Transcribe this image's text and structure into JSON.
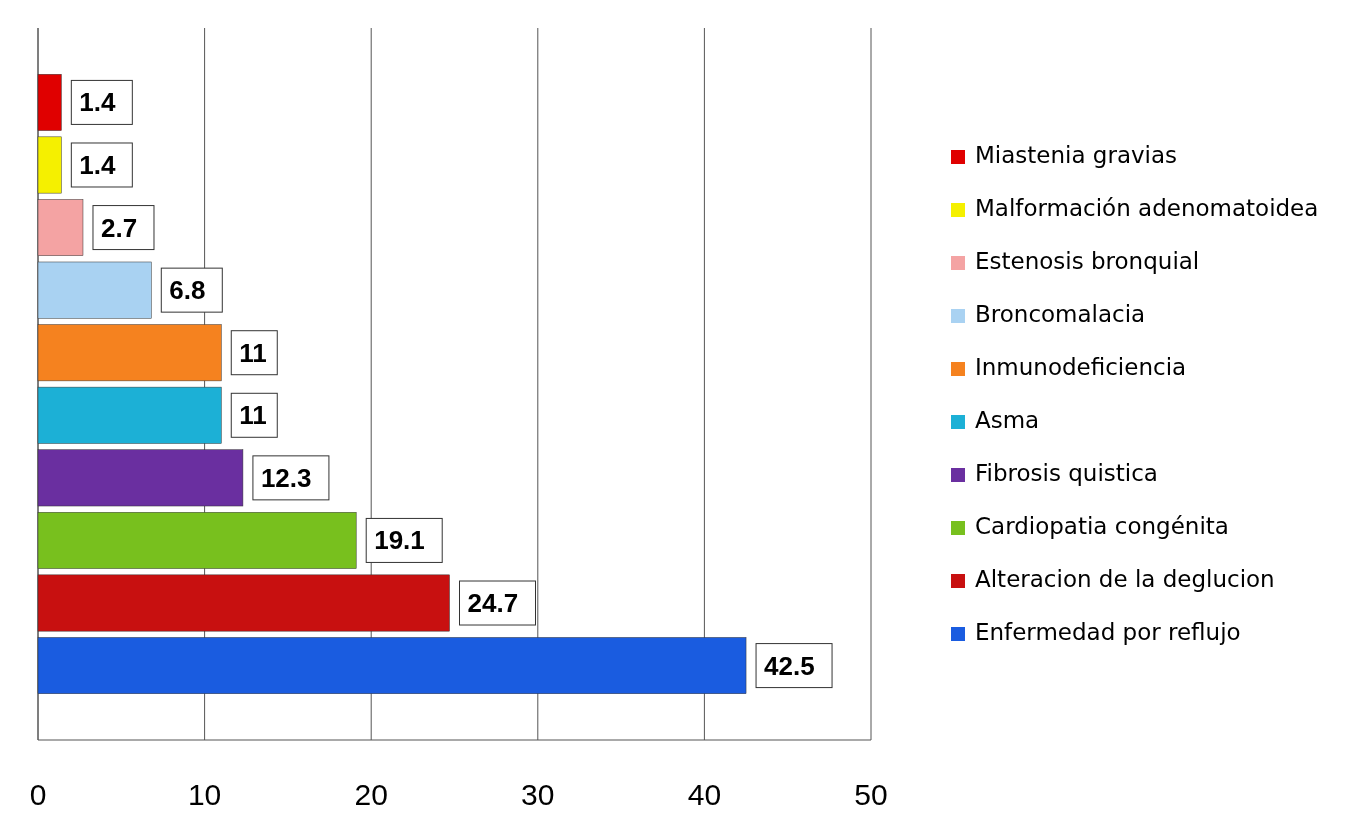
{
  "chart_data": {
    "type": "bar",
    "orientation": "horizontal",
    "stacked": true,
    "categories": [
      null,
      null,
      null,
      null,
      null,
      null,
      null,
      null,
      null,
      null
    ],
    "series": [
      {
        "name": "Miastenia gravias",
        "color": "#e00000",
        "values": [
          1.4,
          null,
          null,
          null,
          null,
          null,
          null,
          null,
          null,
          null
        ]
      },
      {
        "name": "Malformación adenomatoidea",
        "color": "#f5f000",
        "values": [
          null,
          1.4,
          null,
          null,
          null,
          null,
          null,
          null,
          null,
          null
        ]
      },
      {
        "name": "Estenosis bronquial",
        "color": "#f4a3a3",
        "values": [
          null,
          null,
          2.7,
          null,
          null,
          null,
          null,
          null,
          null,
          null
        ]
      },
      {
        "name": "Broncomalacia",
        "color": "#a9d2f2",
        "values": [
          null,
          null,
          null,
          6.8,
          null,
          null,
          null,
          null,
          null,
          null
        ]
      },
      {
        "name": "Inmunodeficiencia",
        "color": "#f5821f",
        "values": [
          null,
          null,
          null,
          null,
          11,
          null,
          null,
          null,
          null,
          null
        ]
      },
      {
        "name": "Asma",
        "color": "#1cb0d6",
        "values": [
          null,
          null,
          null,
          null,
          null,
          11,
          null,
          null,
          null,
          null
        ]
      },
      {
        "name": "Fibrosis quistica",
        "color": "#6a2fa0",
        "values": [
          null,
          null,
          null,
          null,
          null,
          null,
          12.3,
          null,
          null,
          null
        ]
      },
      {
        "name": "Cardiopatia congénita",
        "color": "#78c01e",
        "values": [
          null,
          null,
          null,
          null,
          null,
          null,
          null,
          19.1,
          null,
          null
        ]
      },
      {
        "name": "Alteracion de la deglucion",
        "color": "#c81010",
        "values": [
          null,
          null,
          null,
          null,
          null,
          null,
          null,
          null,
          24.7,
          null
        ]
      },
      {
        "name": "Enfermedad por reflujo",
        "color": "#1a5ce0",
        "values": [
          null,
          null,
          null,
          null,
          null,
          null,
          null,
          null,
          null,
          42.5
        ]
      }
    ],
    "xlim": [
      0,
      50
    ],
    "xticks": [
      0,
      10,
      20,
      30,
      40,
      50
    ],
    "grid": "x",
    "tick_labels": "x",
    "legend": "right",
    "data_labels": true
  }
}
